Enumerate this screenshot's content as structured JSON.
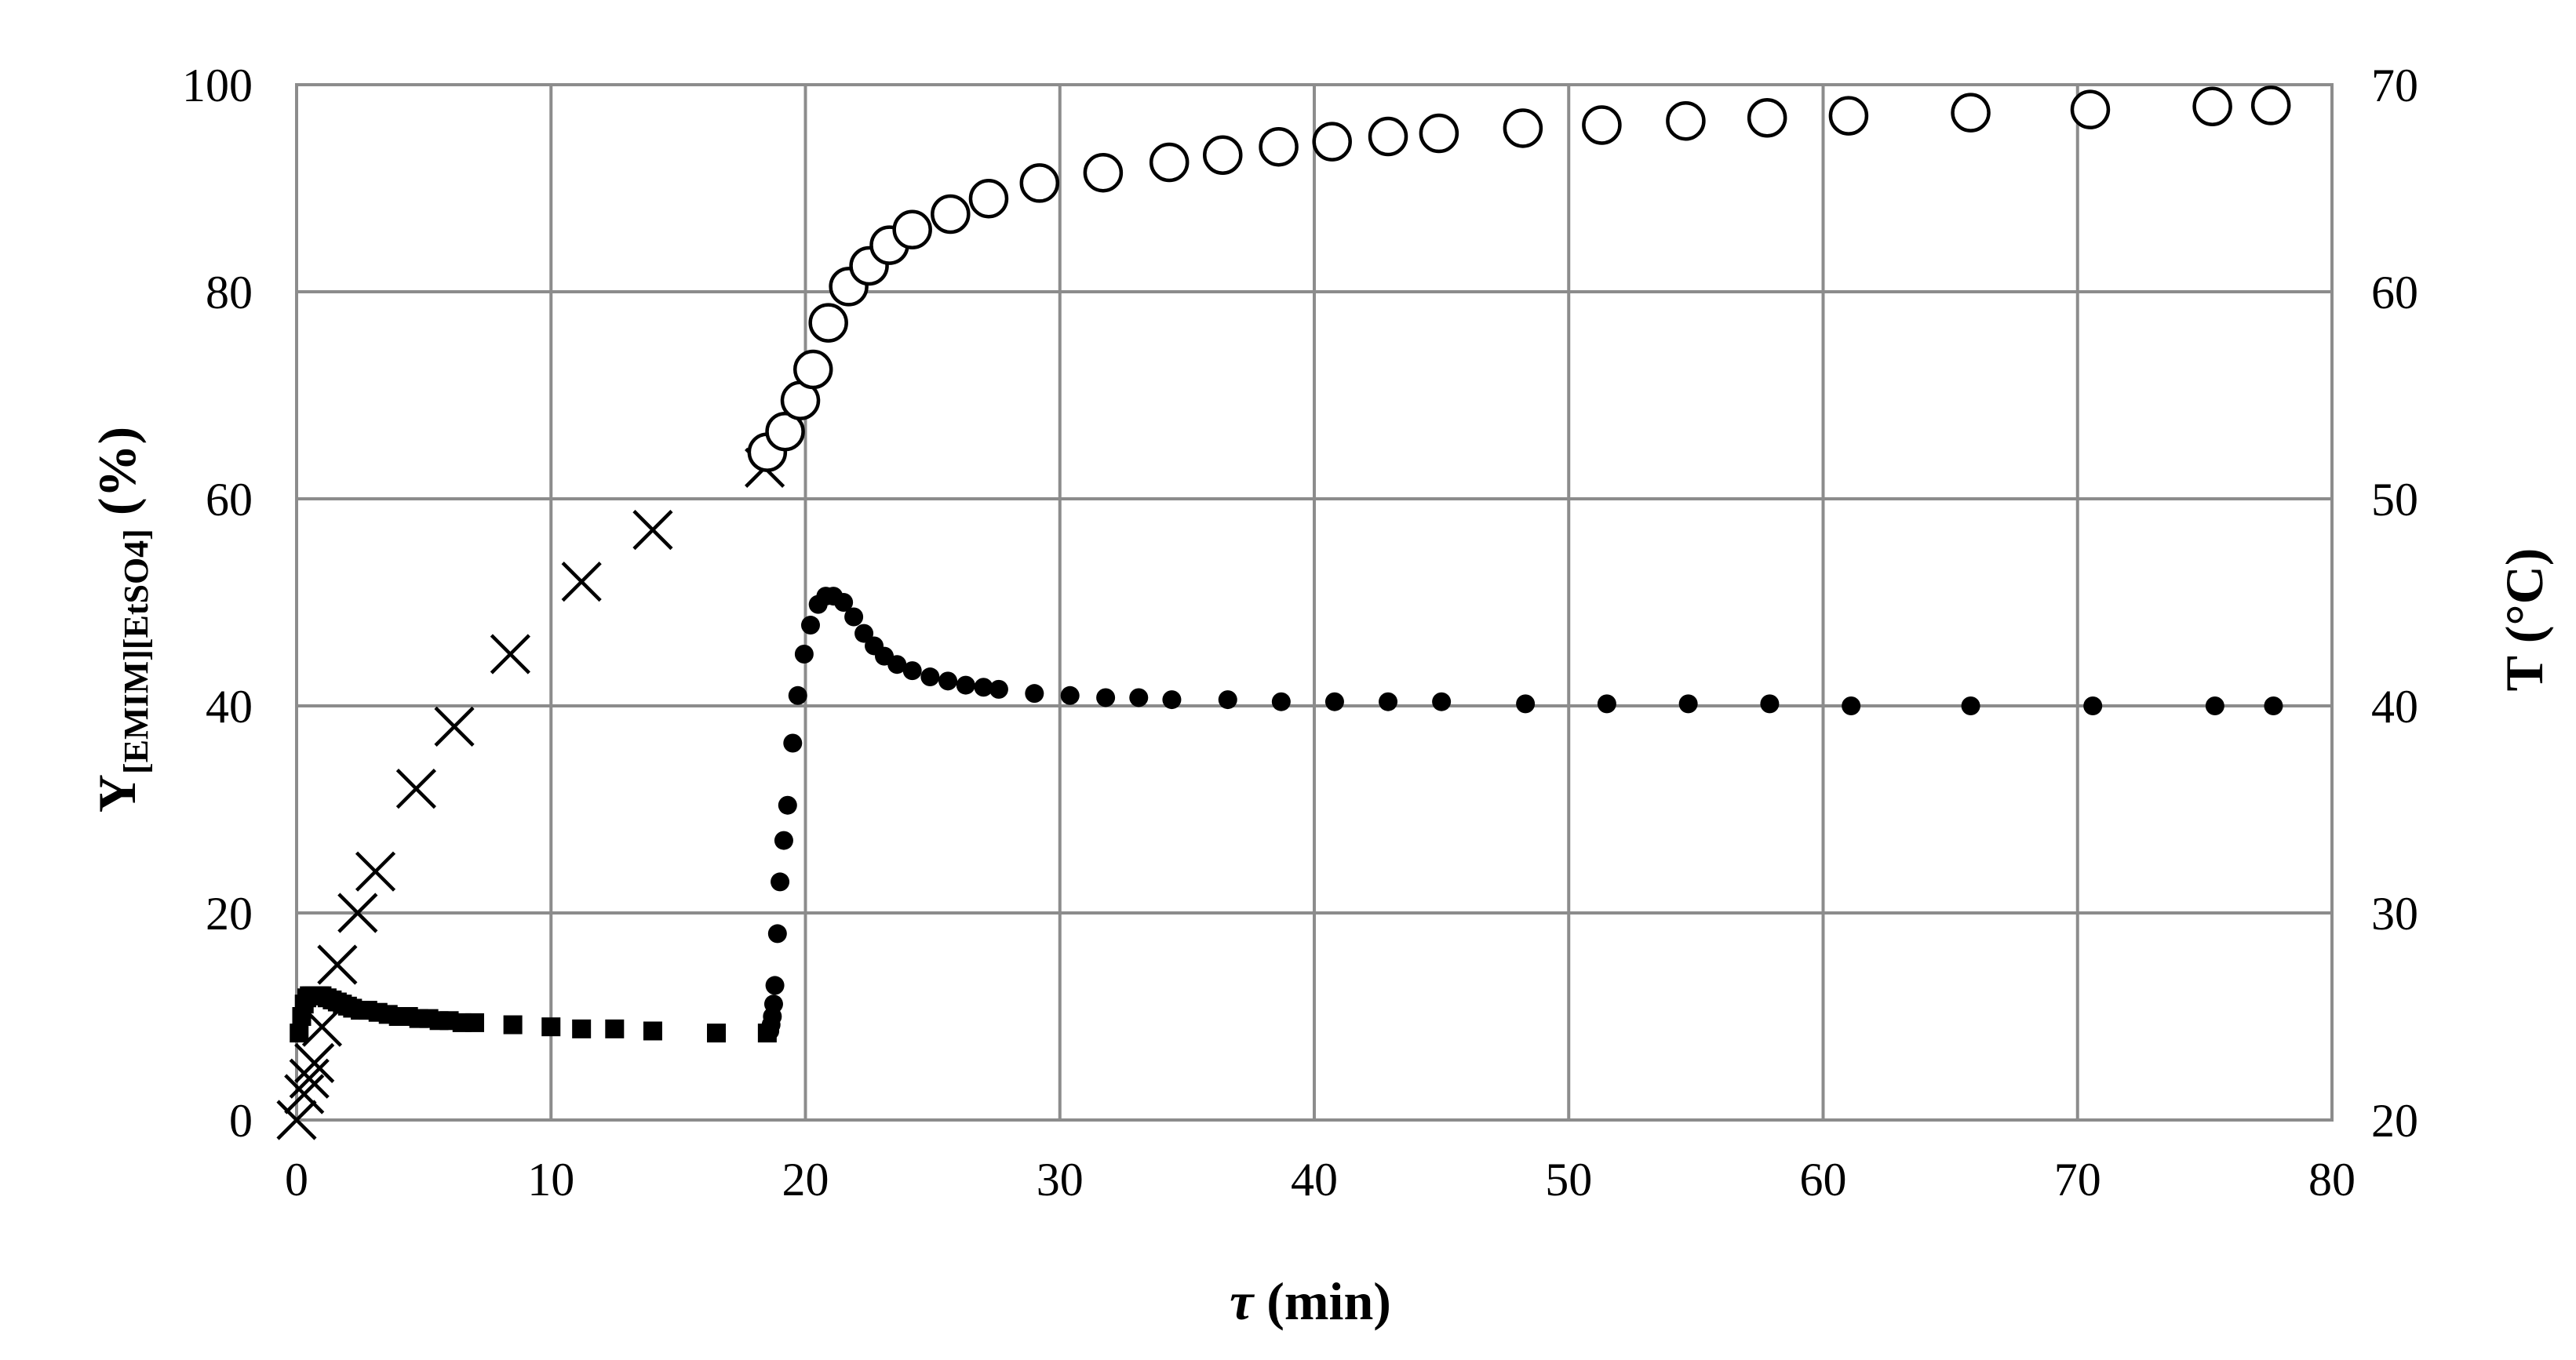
{
  "chart_data": {
    "type": "scatter",
    "title": "",
    "xlabel": {
      "symbol": "τ",
      "unit": " (min)"
    },
    "ylabel": {
      "main": "Y",
      "sub": "[EMIM][EtSO4]",
      "unit": " (%)"
    },
    "y2label": "T (°C)",
    "xlim": [
      0,
      80
    ],
    "ylim": [
      0,
      100
    ],
    "y2lim": [
      20,
      70
    ],
    "xticks": [
      "0",
      "10",
      "20",
      "30",
      "40",
      "50",
      "60",
      "70",
      "80"
    ],
    "yticks": [
      "0",
      "20",
      "40",
      "60",
      "80",
      "100"
    ],
    "y2ticks": [
      "20",
      "30",
      "40",
      "50",
      "60",
      "70"
    ],
    "grid": true,
    "series": [
      {
        "axis": "y",
        "marker": "cross",
        "x": [
          0,
          0.3,
          0.5,
          0.7,
          1.0,
          1.6,
          2.4,
          3.1,
          4.7,
          6.2,
          8.4,
          11.2,
          14.0,
          18.4
        ],
        "y": [
          0,
          2.5,
          4,
          5.5,
          9,
          15,
          20,
          24,
          32,
          38,
          45,
          52,
          57,
          63
        ]
      },
      {
        "axis": "y",
        "marker": "circle-open",
        "x": [
          18.5,
          19.2,
          19.8,
          20.3,
          20.9,
          21.7,
          22.5,
          23.3,
          24.2,
          25.7,
          27.2,
          29.2,
          31.7,
          34.3,
          36.4,
          38.6,
          40.7,
          42.9,
          44.9,
          48.2,
          51.3,
          54.6,
          57.8,
          61.0,
          65.8,
          70.5,
          75.3,
          77.6
        ],
        "y": [
          64.5,
          66.5,
          69.5,
          72.5,
          77,
          80.5,
          82.5,
          84.5,
          86,
          87.5,
          89,
          90.5,
          91.5,
          92.5,
          93.2,
          94,
          94.5,
          95,
          95.3,
          95.8,
          96.1,
          96.5,
          96.8,
          97,
          97.3,
          97.6,
          97.9,
          98
        ]
      },
      {
        "axis": "y2",
        "marker": "square",
        "x": [
          0.1,
          0.2,
          0.3,
          0.4,
          0.5,
          0.6,
          0.7,
          0.8,
          0.9,
          1.0,
          1.2,
          1.4,
          1.6,
          1.8,
          2.0,
          2.2,
          2.5,
          2.8,
          3.2,
          3.6,
          4.0,
          4.4,
          4.8,
          5.2,
          5.6,
          6.0,
          6.5,
          7.0,
          8.5,
          10.0,
          11.2,
          12.5,
          14.0,
          16.5,
          18.5
        ],
        "y": [
          24.2,
          25.0,
          25.6,
          25.9,
          26.0,
          26.0,
          26.0,
          26.0,
          26.0,
          26.0,
          25.9,
          25.8,
          25.7,
          25.6,
          25.5,
          25.4,
          25.3,
          25.3,
          25.2,
          25.1,
          25.0,
          25.0,
          24.9,
          24.9,
          24.8,
          24.8,
          24.7,
          24.7,
          24.6,
          24.5,
          24.4,
          24.4,
          24.3,
          24.2,
          24.2
        ]
      },
      {
        "axis": "y2",
        "marker": "dot",
        "x": [
          18.6,
          18.65,
          18.7,
          18.75,
          18.8,
          18.9,
          19.0,
          19.15,
          19.3,
          19.5,
          19.7,
          19.95,
          20.2,
          20.5,
          20.8,
          21.1,
          21.5,
          21.9,
          22.3,
          22.7,
          23.1,
          23.6,
          24.2,
          24.9,
          25.6,
          26.3,
          27.0,
          27.6,
          29.0,
          30.4,
          31.8,
          33.1,
          34.4,
          36.6,
          38.7,
          40.8,
          42.9,
          45.0,
          48.3,
          51.5,
          54.7,
          57.9,
          61.1,
          65.8,
          70.6,
          75.4,
          77.7
        ],
        "y": [
          24.3,
          24.6,
          25.0,
          25.6,
          26.5,
          29.0,
          31.5,
          33.5,
          35.2,
          38.2,
          40.5,
          42.5,
          43.9,
          44.9,
          45.3,
          45.3,
          45.0,
          44.3,
          43.5,
          42.9,
          42.4,
          42.0,
          41.7,
          41.4,
          41.2,
          41.0,
          40.9,
          40.8,
          40.6,
          40.5,
          40.4,
          40.4,
          40.3,
          40.3,
          40.2,
          40.2,
          40.2,
          40.2,
          40.1,
          40.1,
          40.1,
          40.1,
          40.0,
          40.0,
          40.0,
          40.0,
          40.0
        ]
      }
    ]
  }
}
